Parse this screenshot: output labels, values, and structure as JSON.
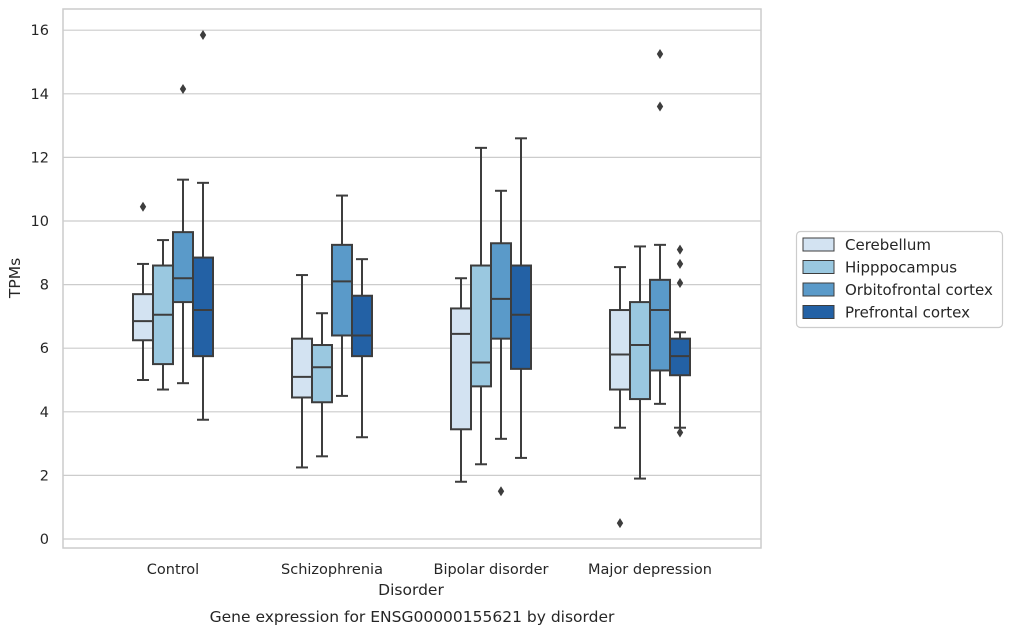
{
  "chart_data": {
    "type": "box",
    "caption": "Gene expression for ENSG00000155621 by disorder",
    "xlabel": "Disorder",
    "ylabel": "TPMs",
    "ylim": [
      -0.25,
      16.65
    ],
    "yticks": [
      0,
      2,
      4,
      6,
      8,
      10,
      12,
      14,
      16
    ],
    "grid": "horizontal",
    "legend_position": "right",
    "categories": [
      "Control",
      "Schizophrenia",
      "Bipolar disorder",
      "Major depression"
    ],
    "series": [
      {
        "name": "Cerebellum",
        "color": "#d3e3f2",
        "boxes": [
          {
            "whisker_low": 5.0,
            "q1": 6.25,
            "median": 6.85,
            "q3": 7.7,
            "whisker_high": 8.65,
            "outliers": [
              10.45
            ]
          },
          {
            "whisker_low": 2.25,
            "q1": 4.45,
            "median": 5.1,
            "q3": 6.3,
            "whisker_high": 8.3,
            "outliers": []
          },
          {
            "whisker_low": 1.8,
            "q1": 3.45,
            "median": 6.45,
            "q3": 7.25,
            "whisker_high": 8.2,
            "outliers": []
          },
          {
            "whisker_low": 3.5,
            "q1": 4.7,
            "median": 5.8,
            "q3": 7.2,
            "whisker_high": 8.55,
            "outliers": [
              0.5
            ]
          }
        ]
      },
      {
        "name": "Hipppocampus",
        "color": "#9ac8e0",
        "boxes": [
          {
            "whisker_low": 4.7,
            "q1": 5.5,
            "median": 7.05,
            "q3": 8.6,
            "whisker_high": 9.4,
            "outliers": []
          },
          {
            "whisker_low": 2.6,
            "q1": 4.3,
            "median": 5.4,
            "q3": 6.1,
            "whisker_high": 7.1,
            "outliers": []
          },
          {
            "whisker_low": 2.35,
            "q1": 4.8,
            "median": 5.55,
            "q3": 8.6,
            "whisker_high": 12.3,
            "outliers": []
          },
          {
            "whisker_low": 1.9,
            "q1": 4.4,
            "median": 6.1,
            "q3": 7.45,
            "whisker_high": 9.2,
            "outliers": []
          }
        ]
      },
      {
        "name": "Orbitofrontal cortex",
        "color": "#5a9ac9",
        "boxes": [
          {
            "whisker_low": 4.9,
            "q1": 7.45,
            "median": 8.2,
            "q3": 9.65,
            "whisker_high": 11.3,
            "outliers": [
              14.15
            ]
          },
          {
            "whisker_low": 4.5,
            "q1": 6.4,
            "median": 8.1,
            "q3": 9.25,
            "whisker_high": 10.8,
            "outliers": []
          },
          {
            "whisker_low": 3.15,
            "q1": 6.3,
            "median": 7.55,
            "q3": 9.3,
            "whisker_high": 10.95,
            "outliers": [
              1.5
            ]
          },
          {
            "whisker_low": 4.25,
            "q1": 5.3,
            "median": 7.2,
            "q3": 8.15,
            "whisker_high": 9.25,
            "outliers": [
              15.25,
              13.6
            ]
          }
        ]
      },
      {
        "name": "Prefrontal cortex",
        "color": "#2361a5",
        "boxes": [
          {
            "whisker_low": 3.75,
            "q1": 5.75,
            "median": 7.2,
            "q3": 8.85,
            "whisker_high": 11.2,
            "outliers": [
              15.85
            ]
          },
          {
            "whisker_low": 3.2,
            "q1": 5.75,
            "median": 6.4,
            "q3": 7.65,
            "whisker_high": 8.8,
            "outliers": []
          },
          {
            "whisker_low": 2.55,
            "q1": 5.35,
            "median": 7.05,
            "q3": 8.6,
            "whisker_high": 12.6,
            "outliers": []
          },
          {
            "whisker_low": 3.5,
            "q1": 5.15,
            "median": 5.75,
            "q3": 6.3,
            "whisker_high": 6.5,
            "outliers": [
              9.1,
              8.65,
              8.05,
              3.35
            ]
          }
        ]
      }
    ]
  }
}
